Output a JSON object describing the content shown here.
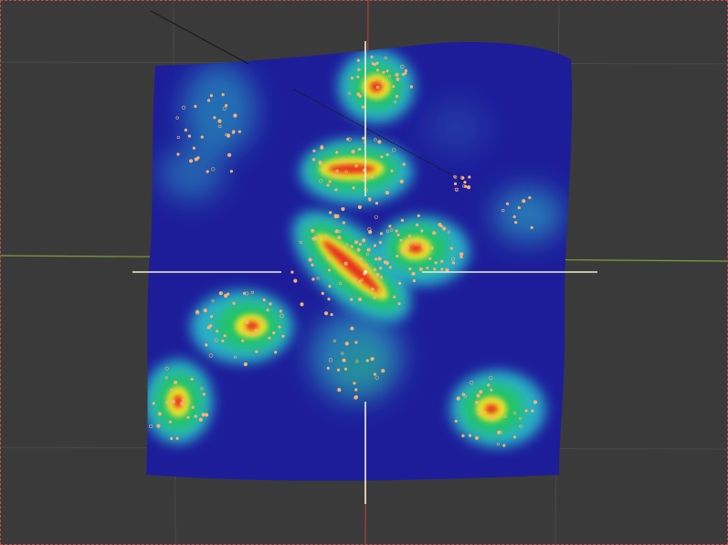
{
  "app": {
    "view": "3D viewport",
    "object_kind": "heatmap-surface"
  },
  "colors": {
    "viewport_background": "#3a3a3a",
    "grid_line": "#4a4a4a",
    "x_axis": "#7f9f3a",
    "y_axis": "#b23a3a",
    "surface_base": "#1d1d9a",
    "heat_low": "#2bb0c8",
    "heat_mid": "#21c466",
    "heat_high": "#e8e02a",
    "heat_peak": "#e8321e",
    "points": "#ffb070",
    "cursor": "#f3f0c8"
  },
  "hotspots": [
    {
      "name": "hotspot-top-center",
      "intensity": 0.95
    },
    {
      "name": "hotspot-upper-bar",
      "intensity": 0.95
    },
    {
      "name": "hotspot-center-diagonal",
      "intensity": 1.0
    },
    {
      "name": "hotspot-center-right",
      "intensity": 0.9
    },
    {
      "name": "hotspot-left-middle",
      "intensity": 0.85
    },
    {
      "name": "hotspot-bottom-left",
      "intensity": 0.9
    },
    {
      "name": "hotspot-bottom-right",
      "intensity": 0.85
    },
    {
      "name": "hotspot-upper-left-faint",
      "intensity": 0.35
    },
    {
      "name": "hotspot-right-faint",
      "intensity": 0.35
    },
    {
      "name": "hotspot-center-lower-faint",
      "intensity": 0.4
    }
  ]
}
